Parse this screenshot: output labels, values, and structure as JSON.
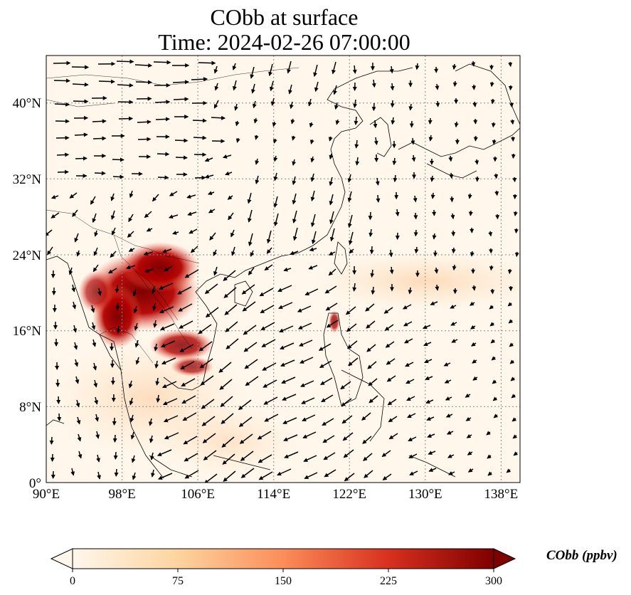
{
  "title_line1": "CObb at surface",
  "title_line2": "Time: 2024-02-26 07:00:00",
  "map": {
    "lon_range": [
      90,
      140
    ],
    "lat_range": [
      0,
      45
    ],
    "lon_ticks": [
      "90°E",
      "98°E",
      "106°E",
      "114°E",
      "122°E",
      "130°E",
      "138°E"
    ],
    "lat_ticks": [
      "0°",
      "8°N",
      "16°N",
      "24°N",
      "32°N",
      "40°N"
    ],
    "gridlines": "dotted",
    "vectors": "wind arrows",
    "colormap": "OrRd"
  },
  "colorbar": {
    "label": "CObb (ppbv)",
    "ticks": [
      "0",
      "75",
      "150",
      "225",
      "300"
    ],
    "min": 0,
    "max": 300,
    "extend": "both",
    "colors": [
      "#fff7ec",
      "#fdd49e",
      "#fc8d59",
      "#d7301f",
      "#7f0000"
    ]
  }
}
